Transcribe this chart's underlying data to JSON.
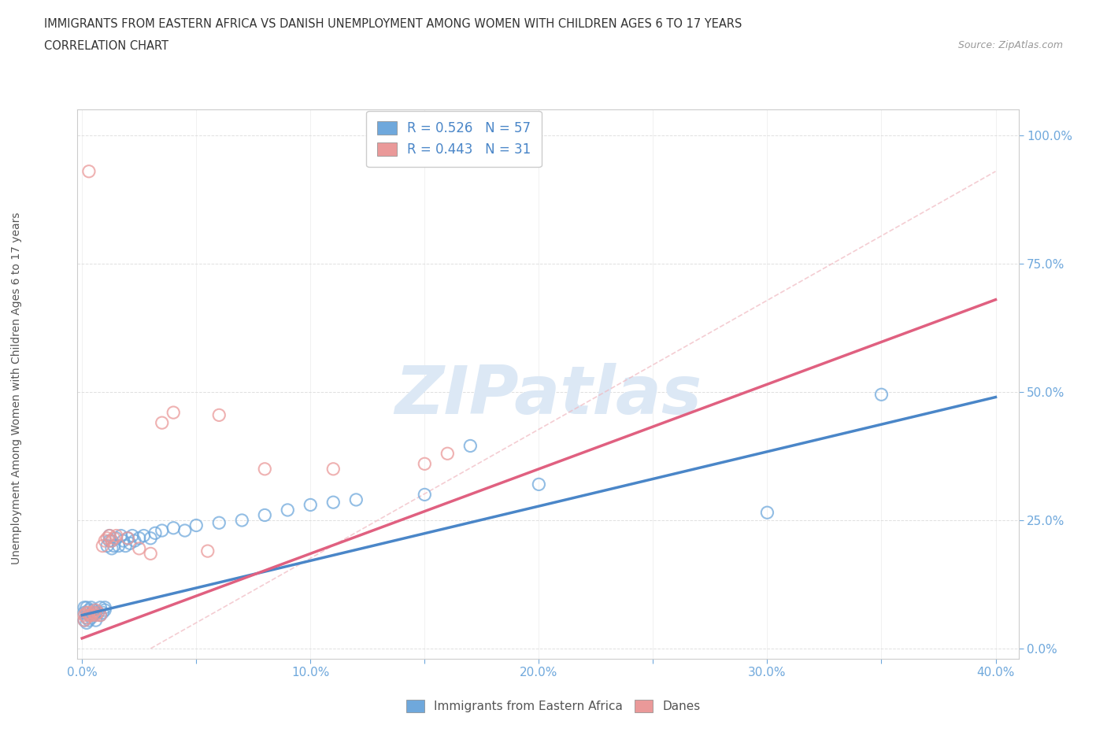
{
  "title_line1": "IMMIGRANTS FROM EASTERN AFRICA VS DANISH UNEMPLOYMENT AMONG WOMEN WITH CHILDREN AGES 6 TO 17 YEARS",
  "title_line2": "CORRELATION CHART",
  "source_text": "Source: ZipAtlas.com",
  "ylabel": "Unemployment Among Women with Children Ages 6 to 17 years",
  "xlim": [
    -0.002,
    0.41
  ],
  "ylim": [
    -0.02,
    1.05
  ],
  "xtick_labels": [
    "0.0%",
    "",
    "",
    "",
    "10.0%",
    "",
    "",
    "",
    "",
    "20.0%",
    "",
    "",
    "",
    "",
    "30.0%",
    "",
    "",
    "",
    "",
    "40.0%"
  ],
  "ytick_labels": [
    "0.0%",
    "25.0%",
    "50.0%",
    "75.0%",
    "100.0%"
  ],
  "ytick_vals": [
    0.0,
    0.25,
    0.5,
    0.75,
    1.0
  ],
  "blue_R": 0.526,
  "blue_N": 57,
  "pink_R": 0.443,
  "pink_N": 31,
  "blue_color": "#6fa8dc",
  "pink_color": "#ea9999",
  "blue_line_color": "#4a86c8",
  "pink_line_color": "#e06080",
  "diag_color": "#f4c2c2",
  "blue_scatter": [
    [
      0.001,
      0.055
    ],
    [
      0.001,
      0.07
    ],
    [
      0.001,
      0.08
    ],
    [
      0.002,
      0.06
    ],
    [
      0.002,
      0.05
    ],
    [
      0.002,
      0.07
    ],
    [
      0.002,
      0.08
    ],
    [
      0.003,
      0.055
    ],
    [
      0.003,
      0.065
    ],
    [
      0.003,
      0.075
    ],
    [
      0.004,
      0.06
    ],
    [
      0.004,
      0.08
    ],
    [
      0.005,
      0.065
    ],
    [
      0.005,
      0.075
    ],
    [
      0.006,
      0.07
    ],
    [
      0.006,
      0.055
    ],
    [
      0.007,
      0.07
    ],
    [
      0.008,
      0.065
    ],
    [
      0.008,
      0.08
    ],
    [
      0.009,
      0.07
    ],
    [
      0.01,
      0.075
    ],
    [
      0.01,
      0.08
    ],
    [
      0.011,
      0.2
    ],
    [
      0.012,
      0.21
    ],
    [
      0.012,
      0.22
    ],
    [
      0.013,
      0.195
    ],
    [
      0.013,
      0.21
    ],
    [
      0.014,
      0.2
    ],
    [
      0.015,
      0.215
    ],
    [
      0.016,
      0.2
    ],
    [
      0.017,
      0.22
    ],
    [
      0.018,
      0.21
    ],
    [
      0.019,
      0.2
    ],
    [
      0.02,
      0.215
    ],
    [
      0.021,
      0.205
    ],
    [
      0.022,
      0.22
    ],
    [
      0.023,
      0.21
    ],
    [
      0.025,
      0.215
    ],
    [
      0.027,
      0.22
    ],
    [
      0.03,
      0.215
    ],
    [
      0.032,
      0.225
    ],
    [
      0.035,
      0.23
    ],
    [
      0.04,
      0.235
    ],
    [
      0.045,
      0.23
    ],
    [
      0.05,
      0.24
    ],
    [
      0.06,
      0.245
    ],
    [
      0.07,
      0.25
    ],
    [
      0.08,
      0.26
    ],
    [
      0.09,
      0.27
    ],
    [
      0.1,
      0.28
    ],
    [
      0.11,
      0.285
    ],
    [
      0.12,
      0.29
    ],
    [
      0.15,
      0.3
    ],
    [
      0.17,
      0.395
    ],
    [
      0.2,
      0.32
    ],
    [
      0.3,
      0.265
    ],
    [
      0.35,
      0.495
    ]
  ],
  "pink_scatter": [
    [
      0.001,
      0.055
    ],
    [
      0.001,
      0.065
    ],
    [
      0.002,
      0.06
    ],
    [
      0.002,
      0.07
    ],
    [
      0.003,
      0.065
    ],
    [
      0.003,
      0.07
    ],
    [
      0.004,
      0.065
    ],
    [
      0.005,
      0.07
    ],
    [
      0.006,
      0.065
    ],
    [
      0.006,
      0.075
    ],
    [
      0.007,
      0.07
    ],
    [
      0.008,
      0.065
    ],
    [
      0.009,
      0.2
    ],
    [
      0.01,
      0.21
    ],
    [
      0.011,
      0.215
    ],
    [
      0.012,
      0.22
    ],
    [
      0.013,
      0.21
    ],
    [
      0.014,
      0.215
    ],
    [
      0.015,
      0.22
    ],
    [
      0.02,
      0.215
    ],
    [
      0.025,
      0.195
    ],
    [
      0.03,
      0.185
    ],
    [
      0.035,
      0.44
    ],
    [
      0.04,
      0.46
    ],
    [
      0.055,
      0.19
    ],
    [
      0.06,
      0.455
    ],
    [
      0.08,
      0.35
    ],
    [
      0.11,
      0.35
    ],
    [
      0.15,
      0.36
    ],
    [
      0.16,
      0.38
    ],
    [
      0.003,
      0.93
    ]
  ],
  "watermark_text": "ZIPatlas",
  "watermark_color": "#dce8f5",
  "background_color": "#ffffff",
  "grid_color": "#d8d8d8"
}
